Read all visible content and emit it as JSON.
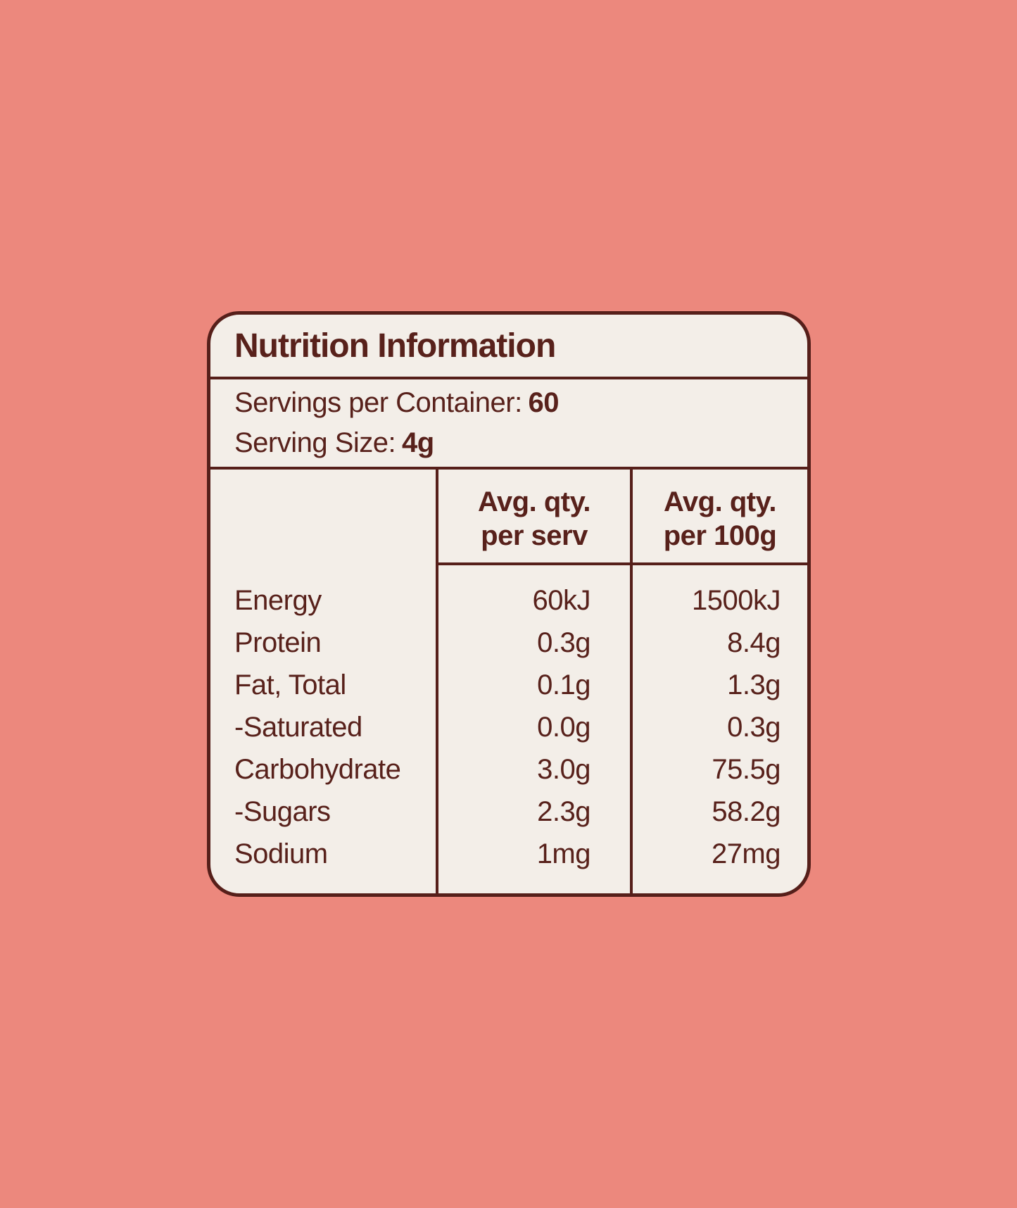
{
  "colors": {
    "background": "#ec887d",
    "card_background": "#f3eee8",
    "ink": "#58211b"
  },
  "card": {
    "title": "Nutrition Information",
    "servings_per_container": {
      "label": "Servings per Container:",
      "value": "60"
    },
    "serving_size": {
      "label": "Serving Size:",
      "value": "4g"
    },
    "table": {
      "header": {
        "per_serv": {
          "line1": "Avg. qty.",
          "line2": "per serv"
        },
        "per_100g": {
          "line1": "Avg. qty.",
          "line2": "per 100g"
        }
      },
      "rows": [
        {
          "label": "Energy",
          "per_serv": "60kJ",
          "per_100g": "1500kJ"
        },
        {
          "label": "Protein",
          "per_serv": "0.3g",
          "per_100g": "8.4g"
        },
        {
          "label": "Fat, Total",
          "per_serv": "0.1g",
          "per_100g": "1.3g"
        },
        {
          "label": "-Saturated",
          "per_serv": "0.0g",
          "per_100g": "0.3g"
        },
        {
          "label": "Carbohydrate",
          "per_serv": "3.0g",
          "per_100g": "75.5g"
        },
        {
          "label": "-Sugars",
          "per_serv": "2.3g",
          "per_100g": "58.2g"
        },
        {
          "label": "Sodium",
          "per_serv": "1mg",
          "per_100g": "27mg"
        }
      ]
    }
  }
}
